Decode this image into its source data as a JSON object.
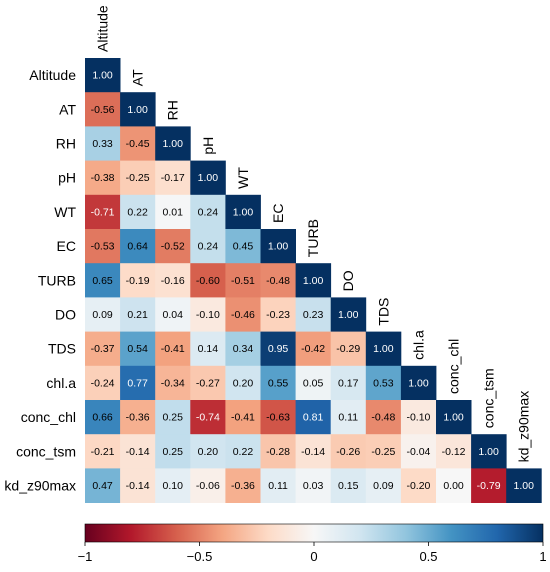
{
  "chart_data": {
    "type": "heatmap",
    "variables": [
      "Altitude",
      "AT",
      "RH",
      "pH",
      "WT",
      "EC",
      "TURB",
      "DO",
      "TDS",
      "chl.a",
      "conc_chl",
      "conc_tsm",
      "kd_z90max"
    ],
    "matrix": [
      [
        "1.00"
      ],
      [
        "-0.56",
        "1.00"
      ],
      [
        "0.33",
        "-0.45",
        "1.00"
      ],
      [
        "-0.38",
        "-0.25",
        "-0.17",
        "1.00"
      ],
      [
        "-0.71",
        "0.22",
        "0.01",
        "0.24",
        "1.00"
      ],
      [
        "-0.53",
        "0.64",
        "-0.52",
        "0.24",
        "0.45",
        "1.00"
      ],
      [
        "0.65",
        "-0.19",
        "-0.16",
        "-0.60",
        "-0.51",
        "-0.48",
        "1.00"
      ],
      [
        "0.09",
        "0.21",
        "0.04",
        "-0.10",
        "-0.46",
        "-0.23",
        "0.23",
        "1.00"
      ],
      [
        "-0.37",
        "0.54",
        "-0.41",
        "0.14",
        "0.34",
        "0.95",
        "-0.42",
        "-0.29",
        "1.00"
      ],
      [
        "-0.24",
        "0.77",
        "-0.34",
        "-0.27",
        "0.20",
        "0.55",
        "0.05",
        "0.17",
        "0.53",
        "1.00"
      ],
      [
        "0.66",
        "-0.36",
        "0.25",
        "-0.74",
        "-0.41",
        "-0.63",
        "0.81",
        "0.11",
        "-0.48",
        "-0.10",
        "1.00"
      ],
      [
        "-0.21",
        "-0.14",
        "0.25",
        "0.20",
        "0.22",
        "-0.28",
        "-0.14",
        "-0.26",
        "-0.25",
        "-0.04",
        "-0.12",
        "1.00"
      ],
      [
        "0.47",
        "-0.14",
        "0.10",
        "-0.06",
        "-0.36",
        "0.11",
        "0.03",
        "0.15",
        "0.09",
        "-0.20",
        "0.00",
        "-0.79",
        "1.00"
      ]
    ],
    "colorbar": {
      "range": [
        -1,
        1
      ],
      "ticks": [
        -1,
        -0.5,
        0,
        0.5,
        1
      ],
      "tick_labels": [
        "−1",
        "−0.5",
        "0",
        "0.5",
        "1"
      ],
      "colors": [
        "#67001f",
        "#b2182b",
        "#d6604d",
        "#f4a582",
        "#fddbc7",
        "#f7f7f7",
        "#d1e5f0",
        "#92c5de",
        "#4393c3",
        "#2166ac",
        "#053061"
      ]
    }
  }
}
